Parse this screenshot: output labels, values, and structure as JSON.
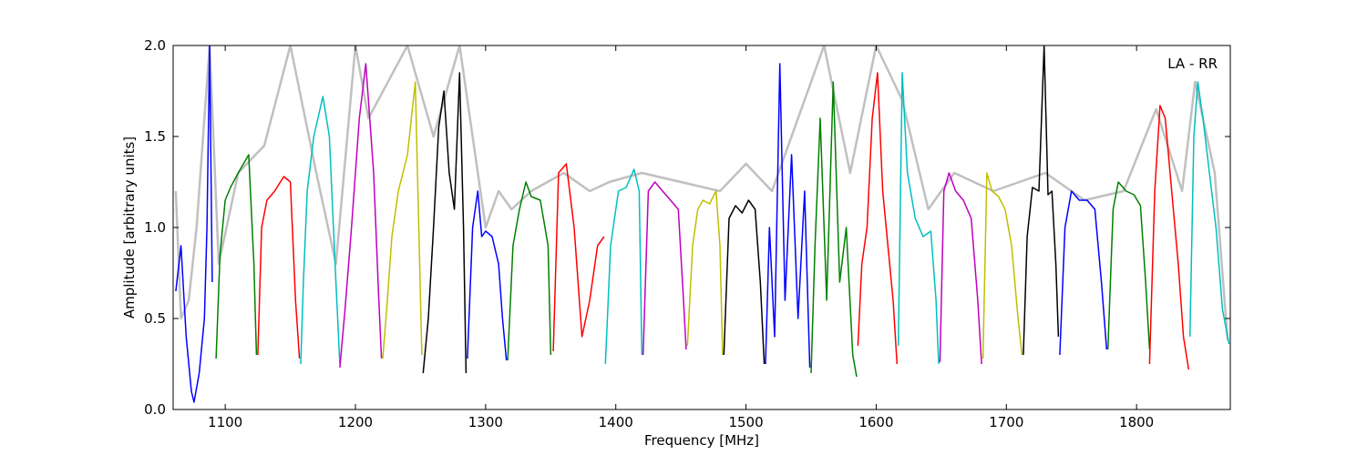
{
  "chart_data": {
    "type": "line",
    "title": "",
    "xlabel": "Frequency [MHz]",
    "ylabel": "Amplitude [arbitrary units]",
    "annotation": "LA - RR",
    "annotation_position": "top-right",
    "xlim": [
      1060,
      1872
    ],
    "ylim": [
      0.0,
      2.0
    ],
    "xticks": [
      1100,
      1200,
      1300,
      1400,
      1500,
      1600,
      1700,
      1800
    ],
    "xtick_labels": [
      "1100",
      "1200",
      "1300",
      "1400",
      "1500",
      "1600",
      "1700",
      "1800"
    ],
    "yticks": [
      0.0,
      0.5,
      1.0,
      1.5,
      2.0
    ],
    "ytick_labels": [
      "0.0",
      "0.5",
      "1.0",
      "1.5",
      "2.0"
    ],
    "grid": false,
    "series": [
      {
        "color": "#c0c0c0",
        "role": "background",
        "x": [
          1062,
          1066,
          1072,
          1078,
          1088,
          1095,
          1110,
          1130,
          1150,
          1170,
          1185,
          1200,
          1210,
          1240,
          1260,
          1280,
          1300,
          1310,
          1320,
          1335,
          1360,
          1380,
          1395,
          1420,
          1450,
          1480,
          1500,
          1520,
          1540,
          1560,
          1580,
          1600,
          1620,
          1640,
          1660,
          1690,
          1710,
          1730,
          1760,
          1790,
          1815,
          1835,
          1845,
          1860,
          1870
        ],
        "y": [
          1.2,
          0.5,
          0.6,
          1.0,
          2.0,
          0.8,
          1.3,
          1.45,
          2.0,
          1.3,
          0.8,
          2.0,
          1.6,
          2.0,
          1.5,
          2.0,
          1.0,
          1.2,
          1.1,
          1.2,
          1.3,
          1.2,
          1.25,
          1.3,
          1.25,
          1.2,
          1.35,
          1.2,
          1.6,
          2.0,
          1.3,
          2.0,
          1.7,
          1.1,
          1.3,
          1.2,
          1.25,
          1.3,
          1.15,
          1.2,
          1.65,
          1.2,
          1.8,
          1.3,
          0.38
        ]
      },
      {
        "color": "#0000ff",
        "x": [
          1062,
          1066,
          1070,
          1074,
          1076,
          1080,
          1084,
          1086,
          1088,
          1090
        ],
        "y": [
          0.65,
          0.9,
          0.4,
          0.1,
          0.04,
          0.2,
          0.5,
          1.0,
          2.0,
          0.7
        ]
      },
      {
        "color": "#008000",
        "x": [
          1093,
          1096,
          1100,
          1104,
          1110,
          1118,
          1122,
          1124
        ],
        "y": [
          0.28,
          0.85,
          1.15,
          1.22,
          1.3,
          1.4,
          0.8,
          0.3
        ]
      },
      {
        "color": "#ff0000",
        "x": [
          1125,
          1128,
          1132,
          1138,
          1145,
          1150,
          1154,
          1157
        ],
        "y": [
          0.3,
          1.0,
          1.15,
          1.2,
          1.28,
          1.25,
          0.6,
          0.28
        ]
      },
      {
        "color": "#00bfbf",
        "x": [
          1158,
          1160,
          1163,
          1168,
          1175,
          1180,
          1185,
          1188
        ],
        "y": [
          0.25,
          0.7,
          1.2,
          1.5,
          1.72,
          1.5,
          0.7,
          0.25
        ]
      },
      {
        "color": "#bf00bf",
        "x": [
          1188,
          1192,
          1197,
          1203,
          1208,
          1214,
          1218,
          1220
        ],
        "y": [
          0.23,
          0.55,
          1.0,
          1.6,
          1.9,
          1.3,
          0.6,
          0.28
        ]
      },
      {
        "color": "#bfbf00",
        "x": [
          1221,
          1224,
          1228,
          1233,
          1240,
          1246,
          1249,
          1251
        ],
        "y": [
          0.28,
          0.55,
          0.95,
          1.2,
          1.4,
          1.8,
          0.9,
          0.3
        ]
      },
      {
        "color": "#000000",
        "x": [
          1252,
          1256,
          1260,
          1264,
          1268,
          1272,
          1276,
          1280,
          1283,
          1285
        ],
        "y": [
          0.2,
          0.5,
          1.0,
          1.55,
          1.75,
          1.3,
          1.1,
          1.85,
          1.0,
          0.2
        ]
      },
      {
        "color": "#0000ff",
        "x": [
          1286,
          1290,
          1294,
          1297,
          1300,
          1305,
          1310,
          1313,
          1316
        ],
        "y": [
          0.28,
          1.0,
          1.2,
          0.95,
          0.98,
          0.95,
          0.8,
          0.5,
          0.27
        ]
      },
      {
        "color": "#008000",
        "x": [
          1317,
          1321,
          1326,
          1331,
          1335,
          1342,
          1348,
          1350
        ],
        "y": [
          0.27,
          0.9,
          1.1,
          1.25,
          1.17,
          1.15,
          0.9,
          0.3
        ]
      },
      {
        "color": "#ff0000",
        "x": [
          1352,
          1356,
          1362,
          1368,
          1374,
          1380,
          1386,
          1391
        ],
        "y": [
          0.32,
          1.3,
          1.35,
          1.0,
          0.4,
          0.6,
          0.9,
          0.95
        ]
      },
      {
        "color": "#00bfbf",
        "x": [
          1392,
          1396,
          1402,
          1408,
          1414,
          1418,
          1420
        ],
        "y": [
          0.25,
          0.9,
          1.2,
          1.22,
          1.32,
          1.2,
          0.3
        ]
      },
      {
        "color": "#bf00bf",
        "x": [
          1421,
          1425,
          1430,
          1436,
          1442,
          1448,
          1452,
          1454
        ],
        "y": [
          0.3,
          1.2,
          1.25,
          1.2,
          1.15,
          1.1,
          0.6,
          0.33
        ]
      },
      {
        "color": "#bfbf00",
        "x": [
          1455,
          1459,
          1463,
          1467,
          1472,
          1477,
          1480,
          1482
        ],
        "y": [
          0.35,
          0.9,
          1.1,
          1.15,
          1.13,
          1.2,
          0.9,
          0.3
        ]
      },
      {
        "color": "#000000",
        "x": [
          1483,
          1487,
          1492,
          1497,
          1502,
          1507,
          1511,
          1514
        ],
        "y": [
          0.3,
          1.05,
          1.12,
          1.08,
          1.15,
          1.1,
          0.7,
          0.25
        ]
      },
      {
        "color": "#0000ff",
        "x": [
          1515,
          1518,
          1522,
          1526,
          1530,
          1535,
          1540,
          1545,
          1549
        ],
        "y": [
          0.25,
          1.0,
          0.4,
          1.9,
          0.6,
          1.4,
          0.5,
          1.2,
          0.23
        ]
      },
      {
        "color": "#008000",
        "x": [
          1550,
          1553,
          1557,
          1562,
          1567,
          1572,
          1577,
          1582,
          1585
        ],
        "y": [
          0.2,
          0.9,
          1.6,
          0.6,
          1.8,
          0.7,
          1.0,
          0.3,
          0.18
        ]
      },
      {
        "color": "#ff0000",
        "x": [
          1586,
          1589,
          1593,
          1597,
          1601,
          1605,
          1609,
          1613,
          1616
        ],
        "y": [
          0.35,
          0.8,
          1.0,
          1.6,
          1.85,
          1.2,
          0.9,
          0.6,
          0.25
        ]
      },
      {
        "color": "#00bfbf",
        "x": [
          1617,
          1620,
          1624,
          1630,
          1636,
          1642,
          1646,
          1648
        ],
        "y": [
          0.35,
          1.85,
          1.3,
          1.05,
          0.95,
          0.98,
          0.6,
          0.25
        ]
      },
      {
        "color": "#bf00bf",
        "x": [
          1649,
          1652,
          1656,
          1661,
          1667,
          1673,
          1678,
          1681
        ],
        "y": [
          0.26,
          1.2,
          1.3,
          1.2,
          1.15,
          1.05,
          0.6,
          0.25
        ]
      },
      {
        "color": "#bfbf00",
        "x": [
          1682,
          1685,
          1689,
          1694,
          1699,
          1704,
          1709,
          1712
        ],
        "y": [
          0.28,
          1.3,
          1.2,
          1.17,
          1.1,
          0.9,
          0.5,
          0.3
        ]
      },
      {
        "color": "#000000",
        "x": [
          1713,
          1716,
          1720,
          1725,
          1729,
          1732,
          1735,
          1738,
          1740
        ],
        "y": [
          0.3,
          0.95,
          1.22,
          1.2,
          2.0,
          1.18,
          1.2,
          0.8,
          0.4
        ]
      },
      {
        "color": "#0000ff",
        "x": [
          1741,
          1745,
          1750,
          1756,
          1762,
          1768,
          1773,
          1777
        ],
        "y": [
          0.3,
          1.0,
          1.2,
          1.15,
          1.15,
          1.1,
          0.7,
          0.33
        ]
      },
      {
        "color": "#008000",
        "x": [
          1778,
          1782,
          1786,
          1792,
          1798,
          1803,
          1807,
          1810
        ],
        "y": [
          0.33,
          1.1,
          1.25,
          1.2,
          1.18,
          1.12,
          0.7,
          0.33
        ]
      },
      {
        "color": "#ff0000",
        "x": [
          1810,
          1814,
          1818,
          1822,
          1827,
          1832,
          1836,
          1840
        ],
        "y": [
          0.25,
          1.2,
          1.67,
          1.6,
          1.2,
          0.8,
          0.4,
          0.22
        ]
      },
      {
        "color": "#00bfbf",
        "x": [
          1841,
          1844,
          1847,
          1851,
          1856,
          1861,
          1866,
          1871
        ],
        "y": [
          0.4,
          1.5,
          1.8,
          1.6,
          1.3,
          1.0,
          0.55,
          0.36
        ]
      }
    ]
  }
}
